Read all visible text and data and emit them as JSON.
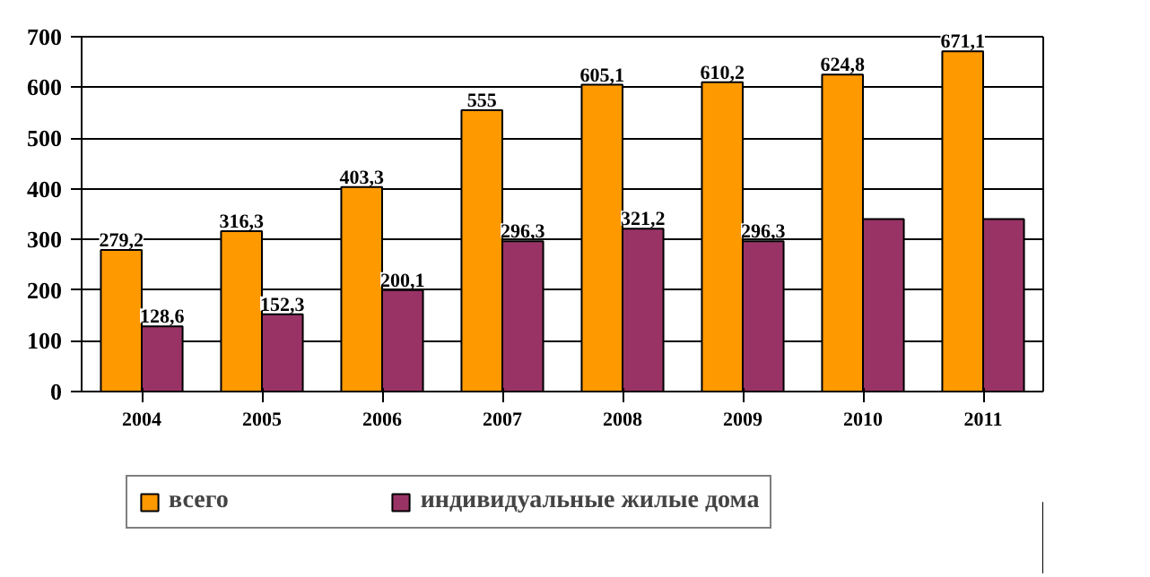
{
  "chart_data": {
    "type": "bar",
    "categories": [
      "2004",
      "2005",
      "2006",
      "2007",
      "2008",
      "2009",
      "2010",
      "2011"
    ],
    "series": [
      {
        "name": "всего",
        "color": "#ff9900",
        "values": [
          279.2,
          316.3,
          403.3,
          555,
          605.1,
          610.2,
          624.8,
          671.1
        ],
        "value_labels": [
          "279,2",
          "316,3",
          "403,3",
          "555",
          "605,1",
          "610,2",
          "624,8",
          "671,1"
        ]
      },
      {
        "name": "индивидуальные жилые дома",
        "color": "#993366",
        "values": [
          128.6,
          152.3,
          200.1,
          296.3,
          321.2,
          296.3,
          340,
          340
        ],
        "value_labels": [
          "128,6",
          "152,3",
          "200,1",
          "296,3",
          "321,2",
          "296,3",
          null,
          null
        ]
      }
    ],
    "ylim": [
      0,
      700
    ],
    "yticks": [
      0,
      100,
      200,
      300,
      400,
      500,
      600,
      700
    ],
    "grid": "y",
    "legend": "bottom"
  }
}
